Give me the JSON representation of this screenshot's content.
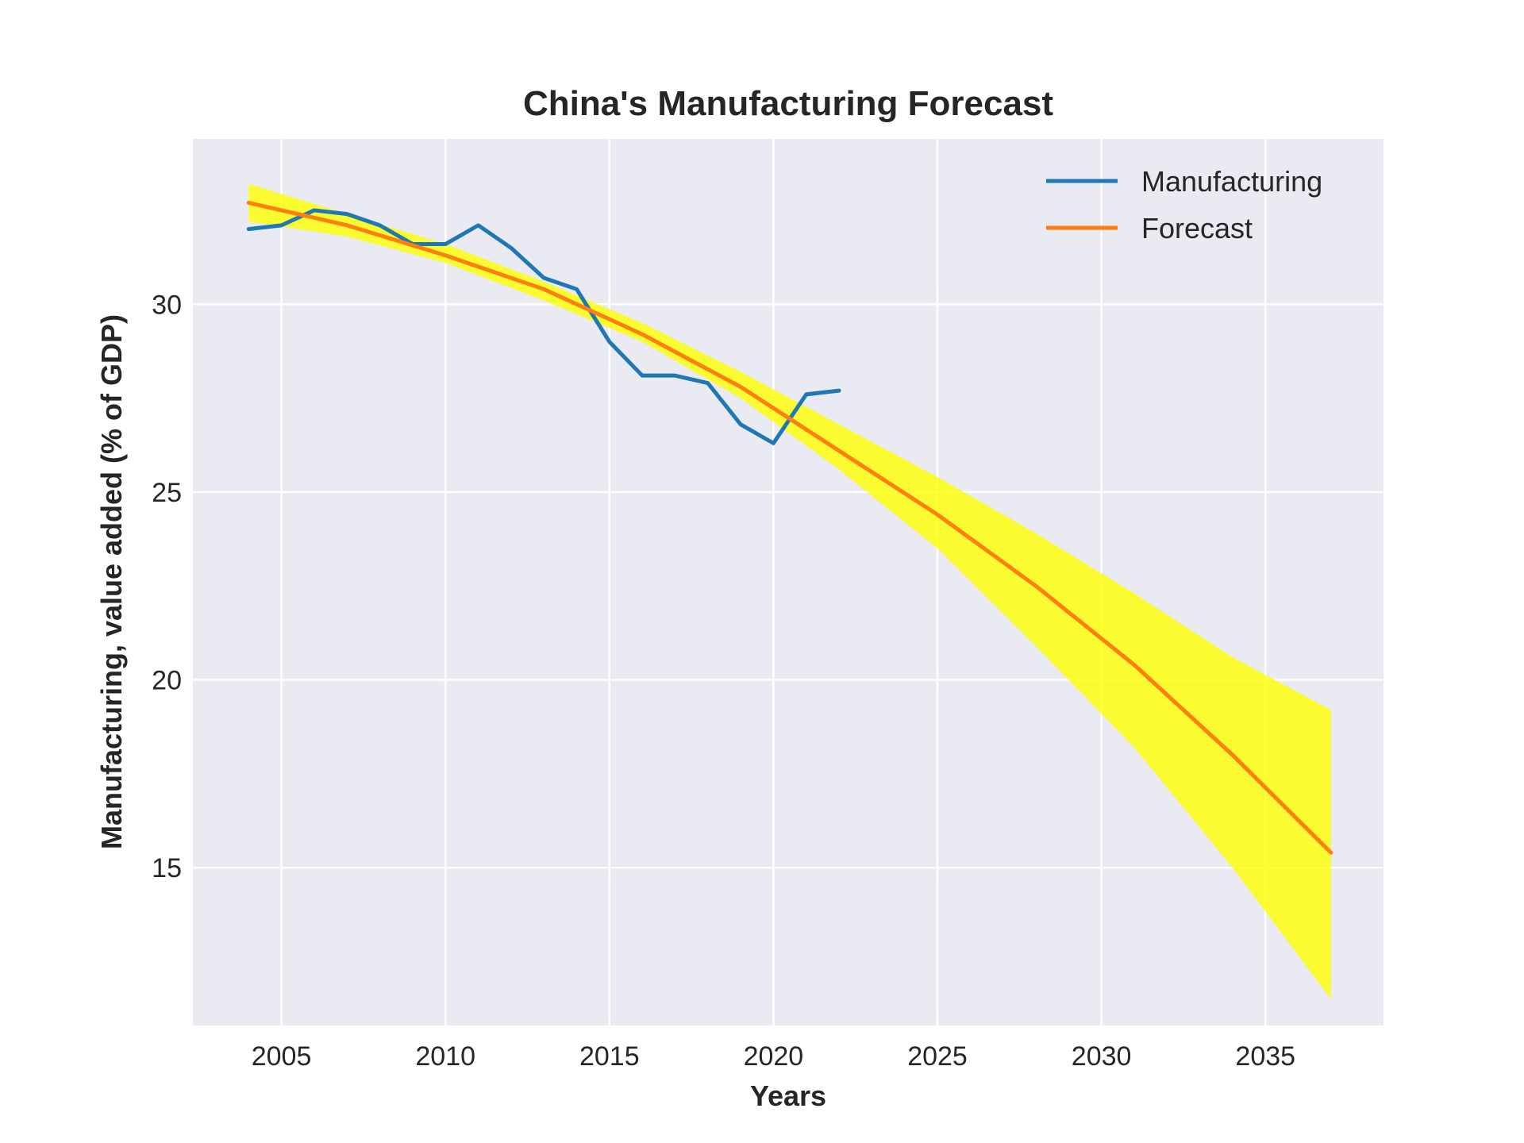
{
  "chart_data": {
    "type": "line",
    "title": "China's Manufacturing Forecast",
    "xlabel": "Years",
    "ylabel": "Manufacturing, value added (% of GDP)",
    "xlim": [
      2002.3,
      2038.6
    ],
    "ylim": [
      10.8,
      34.4
    ],
    "xticks": [
      2005,
      2010,
      2015,
      2020,
      2025,
      2030,
      2035
    ],
    "yticks": [
      15,
      20,
      25,
      30
    ],
    "grid": true,
    "legend_position": "top-right",
    "colors": {
      "background": "#eaeaf2",
      "grid": "#ffffff",
      "manufacturing": "#1f77b4",
      "forecast": "#ff7f0e",
      "band": "#ffff00"
    },
    "series": [
      {
        "name": "Manufacturing",
        "x": [
          2004,
          2005,
          2006,
          2007,
          2008,
          2009,
          2010,
          2011,
          2012,
          2013,
          2014,
          2015,
          2016,
          2017,
          2018,
          2019,
          2020,
          2021,
          2022
        ],
        "values": [
          32.0,
          32.1,
          32.5,
          32.4,
          32.1,
          31.6,
          31.6,
          32.1,
          31.5,
          30.7,
          30.4,
          29.0,
          28.1,
          28.1,
          27.9,
          26.8,
          26.3,
          27.6,
          27.7
        ]
      },
      {
        "name": "Forecast",
        "x": [
          2004,
          2007,
          2010,
          2013,
          2016,
          2019,
          2022,
          2025,
          2028,
          2031,
          2034,
          2037
        ],
        "values": [
          32.7,
          32.1,
          31.3,
          30.4,
          29.2,
          27.8,
          26.1,
          24.4,
          22.5,
          20.4,
          18.0,
          15.4
        ],
        "band_lower": [
          32.2,
          31.8,
          31.1,
          30.1,
          29.0,
          27.5,
          25.6,
          23.5,
          20.9,
          18.2,
          15.0,
          11.5
        ],
        "band_upper": [
          33.2,
          32.4,
          31.6,
          30.6,
          29.5,
          28.2,
          26.8,
          25.4,
          23.9,
          22.3,
          20.6,
          19.2
        ]
      }
    ]
  }
}
